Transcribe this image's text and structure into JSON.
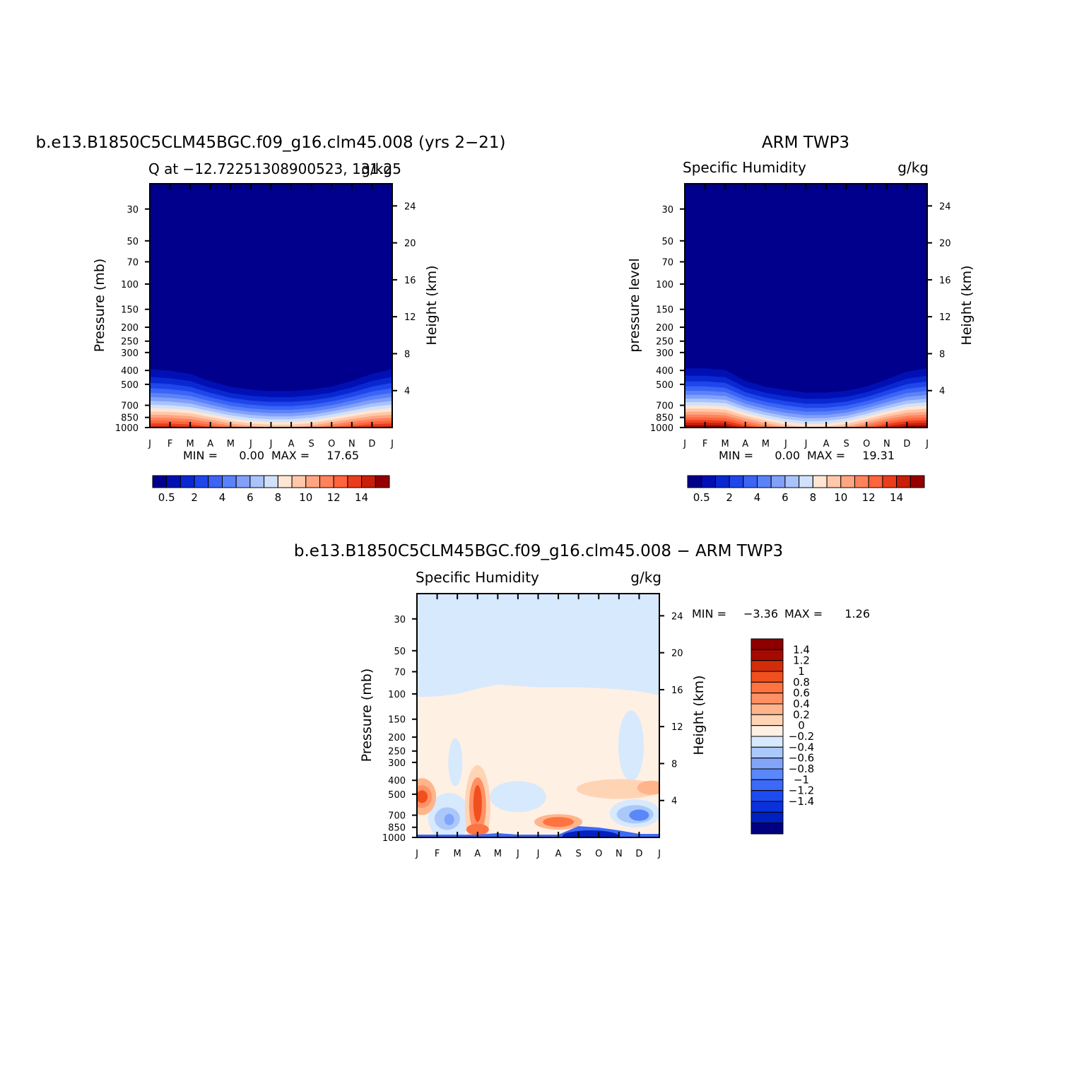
{
  "chart_data": [
    {
      "type": "heatmap",
      "title": "b.e13.B1850C5CLM45BGC.f09_g16.clm45.008 (yrs 2−21)",
      "subtitle_left": "Q at −12.72251308900523, 131.25",
      "subtitle_right": "g/kg",
      "ylabel": "Pressure (mb)",
      "ylabel_right": "Height (km)",
      "months": [
        "J",
        "F",
        "M",
        "A",
        "M",
        "J",
        "J",
        "A",
        "S",
        "O",
        "N",
        "D",
        "J"
      ],
      "pressure_ticks": [
        "30",
        "50",
        "70",
        "100",
        "150",
        "200",
        "250",
        "300",
        "400",
        "500",
        "700",
        "850",
        "1000"
      ],
      "height_ticks": [
        "24",
        "20",
        "16",
        "12",
        "8",
        "4"
      ],
      "min_label": "MIN =",
      "min_value": "0.00",
      "max_label": "MAX =",
      "max_value": "17.65",
      "colorbar_labels": [
        "0.5",
        "2",
        "4",
        "6",
        "8",
        "10",
        "12",
        "14"
      ],
      "tropopause_pressure_by_month": [
        300,
        310,
        330,
        380,
        420,
        440,
        450,
        450,
        440,
        420,
        380,
        330,
        300
      ],
      "surface_max_by_month": [
        17.6,
        17.6,
        17.3,
        16.2,
        14.6,
        13.4,
        12.8,
        12.8,
        13.6,
        15.2,
        16.6,
        17.4,
        17.6
      ]
    },
    {
      "type": "heatmap",
      "title": "ARM TWP3",
      "subtitle_left": "Specific Humidity",
      "subtitle_right": "g/kg",
      "ylabel": "pressure level",
      "ylabel_right": "Height (km)",
      "months": [
        "J",
        "F",
        "M",
        "A",
        "M",
        "J",
        "J",
        "A",
        "S",
        "O",
        "N",
        "D",
        "J"
      ],
      "pressure_ticks": [
        "30",
        "50",
        "70",
        "100",
        "150",
        "200",
        "250",
        "300",
        "400",
        "500",
        "700",
        "850",
        "1000"
      ],
      "height_ticks": [
        "24",
        "20",
        "16",
        "12",
        "8",
        "4"
      ],
      "min_label": "MIN =",
      "min_value": "0.00",
      "max_label": "MAX =",
      "max_value": "19.31",
      "colorbar_labels": [
        "0.5",
        "2",
        "4",
        "6",
        "8",
        "10",
        "12",
        "14"
      ],
      "tropopause_pressure_by_month": [
        300,
        300,
        310,
        380,
        420,
        440,
        460,
        460,
        450,
        420,
        370,
        320,
        300
      ],
      "surface_max_by_month": [
        19.2,
        19.2,
        19.0,
        17.0,
        14.8,
        12.8,
        11.8,
        12.0,
        13.2,
        15.6,
        17.8,
        19.0,
        19.2
      ]
    },
    {
      "type": "heatmap",
      "title": "b.e13.B1850C5CLM45BGC.f09_g16.clm45.008 − ARM TWP3",
      "subtitle_left": "Specific Humidity",
      "subtitle_right": "g/kg",
      "ylabel": "Pressure (mb)",
      "ylabel_right": "Height (km)",
      "months": [
        "J",
        "F",
        "M",
        "A",
        "M",
        "J",
        "J",
        "A",
        "S",
        "O",
        "N",
        "D",
        "J"
      ],
      "pressure_ticks": [
        "30",
        "50",
        "70",
        "100",
        "150",
        "200",
        "250",
        "300",
        "400",
        "500",
        "700",
        "850",
        "1000"
      ],
      "height_ticks": [
        "24",
        "20",
        "16",
        "12",
        "8",
        "4"
      ],
      "min_label": "MIN =",
      "min_value": "−3.36",
      "max_label": "MAX =",
      "max_value": "1.26",
      "colorbar_labels": [
        "1.4",
        "1.2",
        "1",
        "0.8",
        "0.6",
        "0.4",
        "0.2",
        "0",
        "−0.2",
        "−0.4",
        "−0.6",
        "−0.8",
        "−1",
        "−1.2",
        "−1.4"
      ]
    }
  ],
  "colors": {
    "positive_scale": [
      "#00008c",
      "#0010b4",
      "#0a28d2",
      "#1e46eb",
      "#3c64f5",
      "#5a82fa",
      "#82a0fa",
      "#aac3fa",
      "#d2e1fa",
      "#ffe6d2",
      "#ffc8aa",
      "#ffa582",
      "#ff825a",
      "#ff643c",
      "#eb3c1e",
      "#c81e0a",
      "#960000"
    ],
    "diff_scale": [
      "#000080",
      "#0020c0",
      "#0a32dc",
      "#1e4bf0",
      "#3c69f8",
      "#5a87fa",
      "#82a5fa",
      "#aac8fa",
      "#d7e9fc",
      "#fff0e4",
      "#ffd4b4",
      "#ffb48c",
      "#ff9164",
      "#ff7341",
      "#f0501e",
      "#d22d0a",
      "#a50a00",
      "#8c0000"
    ]
  }
}
